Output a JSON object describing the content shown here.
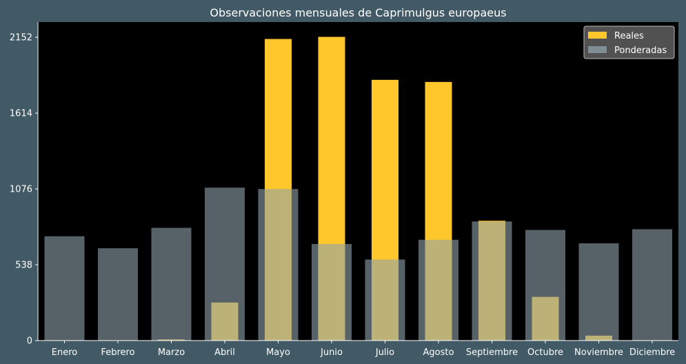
{
  "chart_data": {
    "type": "bar",
    "title": "Observaciones mensuales de Caprimulgus europaeus",
    "xlabel": "",
    "ylabel": "",
    "categories": [
      "Enero",
      "Febrero",
      "Marzo",
      "Abril",
      "Mayo",
      "Junio",
      "Julio",
      "Agosto",
      "Septiembre",
      "Octubre",
      "Noviembre",
      "Diciembre"
    ],
    "series": [
      {
        "name": "Reales",
        "color": "#ffc72c",
        "values": [
          0,
          0,
          8,
          270,
          2140,
          2155,
          1850,
          1835,
          850,
          310,
          35,
          0
        ]
      },
      {
        "name": "Ponderadas",
        "color": "#8fa3ab",
        "values": [
          740,
          655,
          800,
          1085,
          1075,
          685,
          575,
          715,
          845,
          785,
          690,
          790
        ]
      }
    ],
    "yticks": [
      0,
      538,
      1076,
      1614,
      2152
    ],
    "ylim": [
      0,
      2260
    ],
    "grid": false,
    "legend": "top-right",
    "background": "#425a66",
    "plot_background": "#000000"
  }
}
